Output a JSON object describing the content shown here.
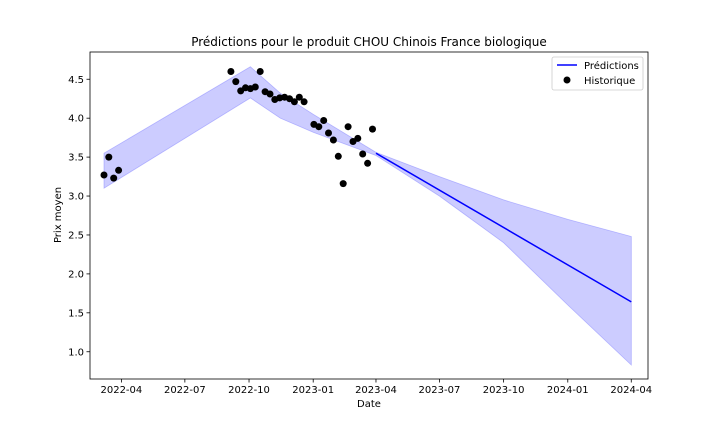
{
  "chart_data": {
    "type": "line",
    "title": "Prédictions pour le produit CHOU Chinois France biologique",
    "xlabel": "Date",
    "ylabel": "Prix moyen",
    "xlim": [
      "2022-02-15",
      "2024-04-25"
    ],
    "ylim": [
      0.65,
      4.85
    ],
    "x_ticks": [
      "2022-04",
      "2022-07",
      "2022-10",
      "2023-01",
      "2023-04",
      "2023-07",
      "2023-10",
      "2024-01",
      "2024-04"
    ],
    "y_ticks": [
      "1.0",
      "1.5",
      "2.0",
      "2.5",
      "3.0",
      "3.5",
      "4.0",
      "4.5"
    ],
    "legend": {
      "position": "top-right",
      "entries": [
        "Prédictions",
        "Historique"
      ]
    },
    "colors": {
      "prediction_line": "#0000ff",
      "confidence_band": "#8080ff",
      "history_points": "#000000"
    },
    "series": [
      {
        "name": "Prédictions",
        "type": "line",
        "points": [
          {
            "x": "2023-04-01",
            "y": 3.55
          },
          {
            "x": "2024-04-01",
            "y": 1.64
          }
        ]
      },
      {
        "name": "Historique",
        "type": "scatter",
        "points": [
          {
            "x": "2022-03-07",
            "y": 3.27
          },
          {
            "x": "2022-03-14",
            "y": 3.5
          },
          {
            "x": "2022-03-21",
            "y": 3.23
          },
          {
            "x": "2022-03-28",
            "y": 3.33
          },
          {
            "x": "2022-09-05",
            "y": 4.6
          },
          {
            "x": "2022-09-12",
            "y": 4.47
          },
          {
            "x": "2022-09-19",
            "y": 4.35
          },
          {
            "x": "2022-09-26",
            "y": 4.39
          },
          {
            "x": "2022-10-03",
            "y": 4.38
          },
          {
            "x": "2022-10-10",
            "y": 4.4
          },
          {
            "x": "2022-10-17",
            "y": 4.6
          },
          {
            "x": "2022-10-24",
            "y": 4.34
          },
          {
            "x": "2022-10-31",
            "y": 4.31
          },
          {
            "x": "2022-11-07",
            "y": 4.24
          },
          {
            "x": "2022-11-14",
            "y": 4.26
          },
          {
            "x": "2022-11-21",
            "y": 4.27
          },
          {
            "x": "2022-11-28",
            "y": 4.25
          },
          {
            "x": "2022-12-05",
            "y": 4.21
          },
          {
            "x": "2022-12-12",
            "y": 4.27
          },
          {
            "x": "2022-12-19",
            "y": 4.21
          },
          {
            "x": "2023-01-02",
            "y": 3.92
          },
          {
            "x": "2023-01-09",
            "y": 3.89
          },
          {
            "x": "2023-01-16",
            "y": 3.97
          },
          {
            "x": "2023-01-23",
            "y": 3.81
          },
          {
            "x": "2023-01-30",
            "y": 3.72
          },
          {
            "x": "2023-02-06",
            "y": 3.51
          },
          {
            "x": "2023-02-13",
            "y": 3.16
          },
          {
            "x": "2023-02-20",
            "y": 3.89
          },
          {
            "x": "2023-02-27",
            "y": 3.7
          },
          {
            "x": "2023-03-06",
            "y": 3.74
          },
          {
            "x": "2023-03-13",
            "y": 3.54
          },
          {
            "x": "2023-03-20",
            "y": 3.42
          },
          {
            "x": "2023-03-27",
            "y": 3.86
          }
        ]
      }
    ],
    "confidence_band": {
      "upper": [
        {
          "x": "2022-03-07",
          "y": 3.55
        },
        {
          "x": "2022-10-03",
          "y": 4.66
        },
        {
          "x": "2022-11-15",
          "y": 4.32
        },
        {
          "x": "2023-01-01",
          "y": 4.05
        },
        {
          "x": "2023-04-01",
          "y": 3.56
        },
        {
          "x": "2023-07-01",
          "y": 3.25
        },
        {
          "x": "2023-10-01",
          "y": 2.95
        },
        {
          "x": "2024-01-01",
          "y": 2.7
        },
        {
          "x": "2024-04-01",
          "y": 2.48
        }
      ],
      "lower": [
        {
          "x": "2022-03-07",
          "y": 3.1
        },
        {
          "x": "2022-10-03",
          "y": 4.26
        },
        {
          "x": "2022-11-15",
          "y": 4.0
        },
        {
          "x": "2023-01-01",
          "y": 3.82
        },
        {
          "x": "2023-04-01",
          "y": 3.52
        },
        {
          "x": "2023-07-01",
          "y": 3.0
        },
        {
          "x": "2023-10-01",
          "y": 2.4
        },
        {
          "x": "2024-01-01",
          "y": 1.6
        },
        {
          "x": "2024-04-01",
          "y": 0.83
        }
      ]
    }
  }
}
